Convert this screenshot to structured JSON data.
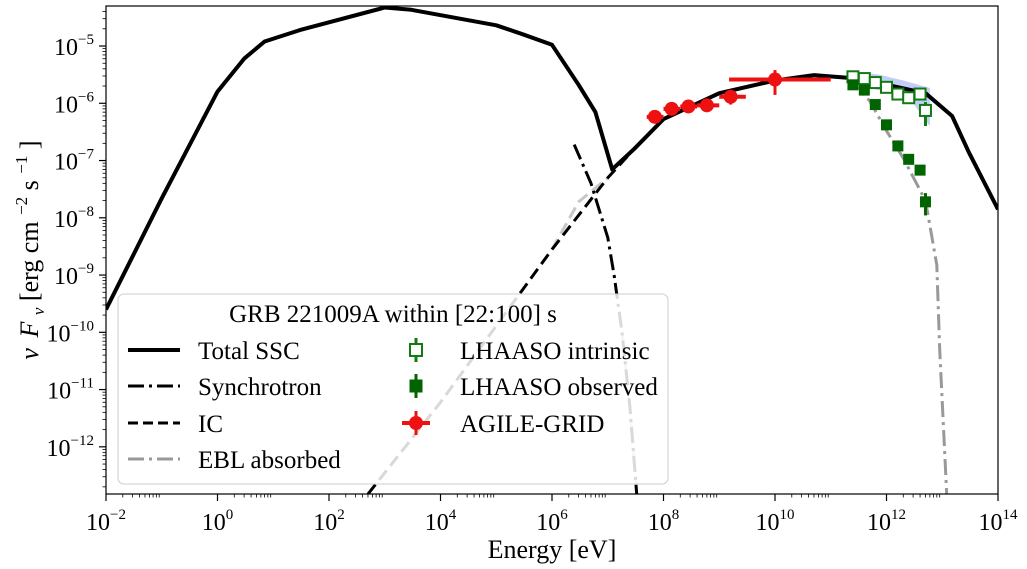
{
  "chart_data": {
    "type": "line",
    "scale": "log-log",
    "xlabel": "Energy [eV]",
    "ylabel": "νF_ν [erg cm^-2 s^-1]",
    "ylabel_parts": {
      "nu": "ν",
      "F": "F",
      "sub": "ν",
      "bracket_open": " [erg cm",
      "m2": "−2",
      "s": " s",
      "m1": "−1",
      "bracket_close": "]"
    },
    "xlim": [
      0.01,
      100000000000000.0
    ],
    "ylim": [
      1.5e-13,
      5e-05
    ],
    "x_ticks": [
      {
        "value": 0.01,
        "base": "10",
        "exp": "−2"
      },
      {
        "value": 1,
        "base": "10",
        "exp": "0"
      },
      {
        "value": 100,
        "base": "10",
        "exp": "2"
      },
      {
        "value": 10000,
        "base": "10",
        "exp": "4"
      },
      {
        "value": 1000000,
        "base": "10",
        "exp": "6"
      },
      {
        "value": 100000000,
        "base": "10",
        "exp": "8"
      },
      {
        "value": 10000000000,
        "base": "10",
        "exp": "10"
      },
      {
        "value": 1000000000000,
        "base": "10",
        "exp": "12"
      },
      {
        "value": 100000000000000,
        "base": "10",
        "exp": "14"
      }
    ],
    "y_ticks": [
      {
        "value": 1e-12,
        "base": "10",
        "exp": "−12"
      },
      {
        "value": 1e-11,
        "base": "10",
        "exp": "−11"
      },
      {
        "value": 1e-10,
        "base": "10",
        "exp": "−10"
      },
      {
        "value": 1e-09,
        "base": "10",
        "exp": "−9"
      },
      {
        "value": 1e-08,
        "base": "10",
        "exp": "−8"
      },
      {
        "value": 1e-07,
        "base": "10",
        "exp": "−7"
      },
      {
        "value": 1e-06,
        "base": "10",
        "exp": "−6"
      },
      {
        "value": 1e-05,
        "base": "10",
        "exp": "−5"
      }
    ],
    "legend": {
      "title": "GRB 221009A within [22:100] s",
      "placement": "lower-left",
      "entries": [
        "Total SSC",
        "Synchrotron",
        "IC",
        "EBL absorbed",
        "LHAASO intrinsic",
        "LHAASO observed",
        "AGILE-GRID"
      ]
    },
    "lines": [
      {
        "name": "Total SSC",
        "color": "#000000",
        "dash": "solid",
        "points": [
          [
            0.01,
            2.5e-10
          ],
          [
            0.1,
            2.2e-08
          ],
          [
            1,
            1.6e-06
          ],
          [
            3,
            6e-06
          ],
          [
            7,
            1.2e-05
          ],
          [
            30,
            1.9e-05
          ],
          [
            1000,
            4.7e-05
          ],
          [
            3000,
            4.3e-05
          ],
          [
            100000.0,
            2.3e-05
          ],
          [
            300000.0,
            1.6e-05
          ],
          [
            1000000.0,
            1.05e-05
          ],
          [
            3000000.0,
            2.1e-06
          ],
          [
            6000000.0,
            7e-07
          ],
          [
            12000000.0,
            7e-08
          ],
          [
            30000000.0,
            1.6e-07
          ],
          [
            100000000.0,
            5.3e-07
          ],
          [
            1000000000.0,
            1.5e-06
          ],
          [
            10000000000.0,
            2.5e-06
          ],
          [
            50000000000.0,
            3.1e-06
          ],
          [
            200000000000.0,
            2.8e-06
          ],
          [
            1000000000000.0,
            2.1e-06
          ],
          [
            5000000000000.0,
            1.5e-06
          ],
          [
            15000000000000.0,
            6e-07
          ],
          [
            30000000000000.0,
            1.4e-07
          ],
          [
            100000000000000.0,
            1.4e-08
          ]
        ]
      },
      {
        "name": "Synchrotron",
        "color": "#000000",
        "dash": "dashdot",
        "points": [
          [
            2500000.0,
            1.9e-07
          ],
          [
            5000000.0,
            4e-08
          ],
          [
            10000000.0,
            4.5e-09
          ],
          [
            13000000.0,
            1e-09
          ],
          [
            18000000.0,
            1e-10
          ],
          [
            25000000.0,
            5e-12
          ],
          [
            33000000.0,
            1.5e-13
          ]
        ]
      },
      {
        "name": "IC",
        "color": "#000000",
        "dash": "dashed",
        "points": [
          [
            500,
            1.5e-13
          ],
          [
            10000.0,
            6e-12
          ],
          [
            100000.0,
            1.3e-10
          ],
          [
            1000000.0,
            2.8e-09
          ],
          [
            10000000.0,
            5e-08
          ],
          [
            30000000.0,
            1.6e-07
          ],
          [
            100000000.0,
            5.3e-07
          ],
          [
            1000000000.0,
            1.5e-06
          ],
          [
            10000000000.0,
            2.5e-06
          ],
          [
            50000000000.0,
            3.1e-06
          ],
          [
            200000000000.0,
            2.8e-06
          ]
        ]
      },
      {
        "name": "IC (faded)",
        "color": "#c8c8c8",
        "dash": "dashed",
        "points": [
          [
            1000000.0,
            2.8e-09
          ],
          [
            3000000.0,
            1.9e-08
          ],
          [
            10000000.0,
            5e-08
          ]
        ]
      },
      {
        "name": "Synchrotron (faded)",
        "color": "#c8c8c8",
        "dash": "dashdot",
        "points": [
          [
            18000000.0,
            1e-10
          ],
          [
            25000000.0,
            5e-12
          ],
          [
            33000000.0,
            1.5e-13
          ]
        ]
      },
      {
        "name": "EBL absorbed",
        "color": "#999999",
        "dash": "dashdot",
        "points": [
          [
            200000000000.0,
            2.8e-06
          ],
          [
            500000000000.0,
            1.1e-06
          ],
          [
            1000000000000.0,
            3.3e-07
          ],
          [
            2000000000000.0,
            1.1e-07
          ],
          [
            5000000000000.0,
            2e-08
          ],
          [
            8000000000000.0,
            1.5e-09
          ],
          [
            9000000000000.0,
            5e-11
          ],
          [
            12000000000000.0,
            1.5e-13
          ]
        ]
      }
    ],
    "band": {
      "name": "LHAASO intrinsic band",
      "color": "#aebcf5",
      "upper": [
        [
          200000000000.0,
          3.6e-06
        ],
        [
          700000000000.0,
          3.2e-06
        ],
        [
          2000000000000.0,
          2.5e-06
        ],
        [
          6000000000000.0,
          1.85e-06
        ]
      ],
      "lower": [
        [
          6000000000000.0,
          4e-07
        ],
        [
          3000000000000.0,
          1e-06
        ],
        [
          1000000000000.0,
          1.6e-06
        ],
        [
          200000000000.0,
          2.2e-06
        ]
      ]
    },
    "series": [
      {
        "name": "LHAASO intrinsic",
        "marker": "open-square",
        "color": "#117a11",
        "points": [
          {
            "x": 250000000000.0,
            "y": 2.9e-06,
            "ylo": 2.6e-06,
            "yhi": 3.2e-06
          },
          {
            "x": 400000000000.0,
            "y": 2.7e-06,
            "ylo": 2.4e-06,
            "yhi": 3e-06
          },
          {
            "x": 630000000000.0,
            "y": 2.3e-06,
            "ylo": 2.05e-06,
            "yhi": 2.6e-06
          },
          {
            "x": 1000000000000.0,
            "y": 1.9e-06,
            "ylo": 1.7e-06,
            "yhi": 2.1e-06
          },
          {
            "x": 1600000000000.0,
            "y": 1.45e-06,
            "ylo": 1.3e-06,
            "yhi": 1.6e-06
          },
          {
            "x": 2500000000000.0,
            "y": 1.25e-06,
            "ylo": 1.05e-06,
            "yhi": 1.45e-06
          },
          {
            "x": 4000000000000.0,
            "y": 1.45e-06,
            "ylo": 1.15e-06,
            "yhi": 1.75e-06
          },
          {
            "x": 5000000000000.0,
            "y": 7.5e-07,
            "ylo": 4e-07,
            "yhi": 1.05e-06
          }
        ]
      },
      {
        "name": "LHAASO observed",
        "marker": "filled-square",
        "color": "#006400",
        "points": [
          {
            "x": 250000000000.0,
            "y": 2.1e-06,
            "ylo": 1.9e-06,
            "yhi": 2.3e-06
          },
          {
            "x": 400000000000.0,
            "y": 1.7e-06,
            "ylo": 1.55e-06,
            "yhi": 1.85e-06
          },
          {
            "x": 630000000000.0,
            "y": 9.5e-07,
            "ylo": 8.5e-07,
            "yhi": 1.05e-06
          },
          {
            "x": 1000000000000.0,
            "y": 4.2e-07,
            "ylo": 3.8e-07,
            "yhi": 4.6e-07
          },
          {
            "x": 1600000000000.0,
            "y": 1.8e-07,
            "ylo": 1.6e-07,
            "yhi": 2e-07
          },
          {
            "x": 2500000000000.0,
            "y": 1.05e-07,
            "ylo": 9e-08,
            "yhi": 1.2e-07
          },
          {
            "x": 4000000000000.0,
            "y": 6.8e-08,
            "ylo": 5.6e-08,
            "yhi": 8e-08
          },
          {
            "x": 5000000000000.0,
            "y": 1.9e-08,
            "ylo": 1.1e-08,
            "yhi": 2.7e-08
          }
        ]
      },
      {
        "name": "AGILE-GRID",
        "marker": "filled-circle",
        "color": "#ee1111",
        "points": [
          {
            "x": 70000000.0,
            "y": 5.8e-07,
            "xlo": 50000000.0,
            "xhi": 100000000.0,
            "ylo": 5.3e-07,
            "yhi": 6.4e-07
          },
          {
            "x": 140000000.0,
            "y": 8e-07,
            "xlo": 100000000.0,
            "xhi": 200000000.0,
            "ylo": 7.2e-07,
            "yhi": 8.8e-07
          },
          {
            "x": 280000000.0,
            "y": 8.8e-07,
            "xlo": 200000000.0,
            "xhi": 400000000.0,
            "ylo": 7.8e-07,
            "yhi": 9.8e-07
          },
          {
            "x": 600000000.0,
            "y": 9.2e-07,
            "xlo": 400000000.0,
            "xhi": 1000000000.0,
            "ylo": 8e-07,
            "yhi": 1.05e-06
          },
          {
            "x": 1600000000.0,
            "y": 1.3e-06,
            "xlo": 1000000000.0,
            "xhi": 3000000000.0,
            "ylo": 9.5e-07,
            "yhi": 1.7e-06
          },
          {
            "x": 10000000000.0,
            "y": 2.6e-06,
            "xlo": 1500000000.0,
            "xhi": 100000000000.0,
            "ylo": 1.4e-06,
            "yhi": 3.8e-06
          }
        ]
      }
    ]
  }
}
